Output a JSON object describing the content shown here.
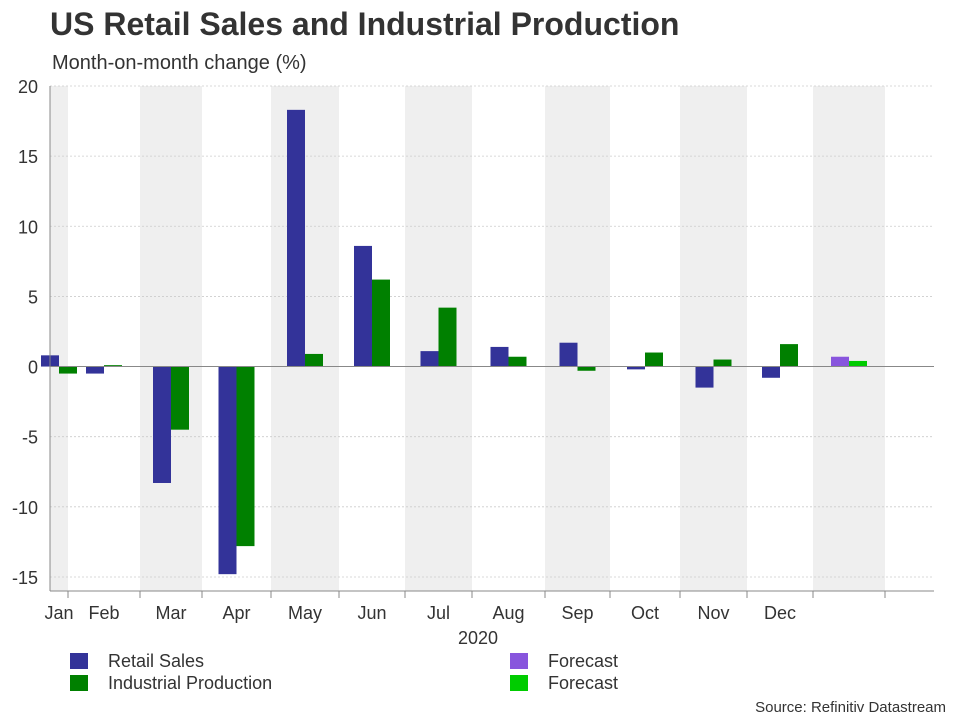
{
  "chart_data": {
    "type": "bar",
    "title": "US Retail Sales and Industrial Production",
    "subtitle": "Month-on-month change (%)",
    "xlabel": "2020",
    "ylabel": "",
    "ylim": [
      -16,
      20
    ],
    "yticks": [
      20,
      15,
      10,
      5,
      0,
      -5,
      -10,
      -15
    ],
    "categories": [
      "Jan",
      "Feb",
      "Mar",
      "Apr",
      "May",
      "Jun",
      "Jul",
      "Aug",
      "Sep",
      "Oct",
      "Nov",
      "Dec",
      ""
    ],
    "series": [
      {
        "name": "Retail Sales",
        "color": "#333399",
        "values": [
          0.8,
          -0.5,
          -8.3,
          -14.8,
          18.3,
          8.6,
          1.1,
          1.4,
          1.7,
          -0.2,
          -1.5,
          -0.8,
          null
        ]
      },
      {
        "name": "Industrial Production",
        "color": "#008000",
        "values": [
          -0.5,
          0.1,
          -4.5,
          -12.8,
          0.9,
          6.2,
          4.2,
          0.7,
          -0.3,
          1.0,
          0.5,
          1.6,
          null
        ]
      },
      {
        "name": "Forecast",
        "color": "#8855dd",
        "values": [
          null,
          null,
          null,
          null,
          null,
          null,
          null,
          null,
          null,
          null,
          null,
          null,
          0.7
        ]
      },
      {
        "name": "Forecast",
        "color": "#00cc00",
        "values": [
          null,
          null,
          null,
          null,
          null,
          null,
          null,
          null,
          null,
          null,
          null,
          null,
          0.4
        ]
      }
    ],
    "shaded_columns": [
      0,
      2,
      4,
      6,
      8,
      10,
      12
    ],
    "grid": true,
    "legend": "bottom",
    "source": "Source: Refinitiv Datastream"
  }
}
